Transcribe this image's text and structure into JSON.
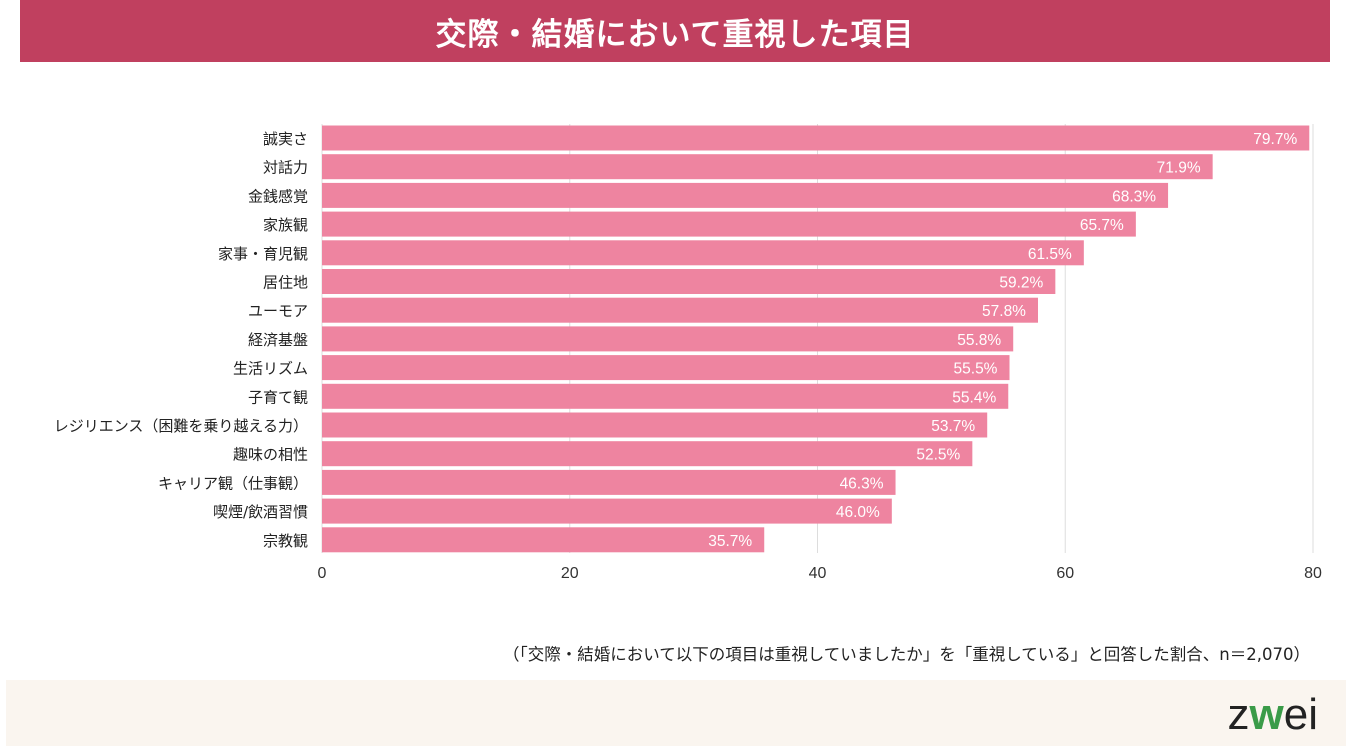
{
  "header": {
    "title": "交際・結婚において重視した項目"
  },
  "chart_data": {
    "type": "bar",
    "orientation": "horizontal",
    "title": "交際・結婚において重視した項目",
    "categories": [
      "誠実さ",
      "対話力",
      "金銭感覚",
      "家族観",
      "家事・育児観",
      "居住地",
      "ユーモア",
      "経済基盤",
      "生活リズム",
      "子育て観",
      "レジリエンス（困難を乗り越える力）",
      "趣味の相性",
      "キャリア観（仕事観）",
      "喫煙/飲酒習慣",
      "宗教観"
    ],
    "values": [
      79.7,
      71.9,
      68.3,
      65.7,
      61.5,
      59.2,
      57.8,
      55.8,
      55.5,
      55.4,
      53.7,
      52.5,
      46.3,
      46.0,
      35.7
    ],
    "value_labels": [
      "79.7%",
      "71.9%",
      "68.3%",
      "65.7%",
      "61.5%",
      "59.2%",
      "57.8%",
      "55.8%",
      "55.5%",
      "55.4%",
      "53.7%",
      "52.5%",
      "46.3%",
      "46.0%",
      "35.7%"
    ],
    "xlim": [
      0,
      80
    ],
    "xticks": [
      "0",
      "20",
      "40",
      "60",
      "80"
    ],
    "grid": true,
    "bar_color": "#ee84a0",
    "xlabel": "",
    "ylabel": ""
  },
  "note": "（「交際・結婚において以下の項目は重視していましたか」を「重視している」と回答した割合、n＝2,070）",
  "logo": {
    "text": "zwei",
    "brand_color": "#3a9b48"
  }
}
